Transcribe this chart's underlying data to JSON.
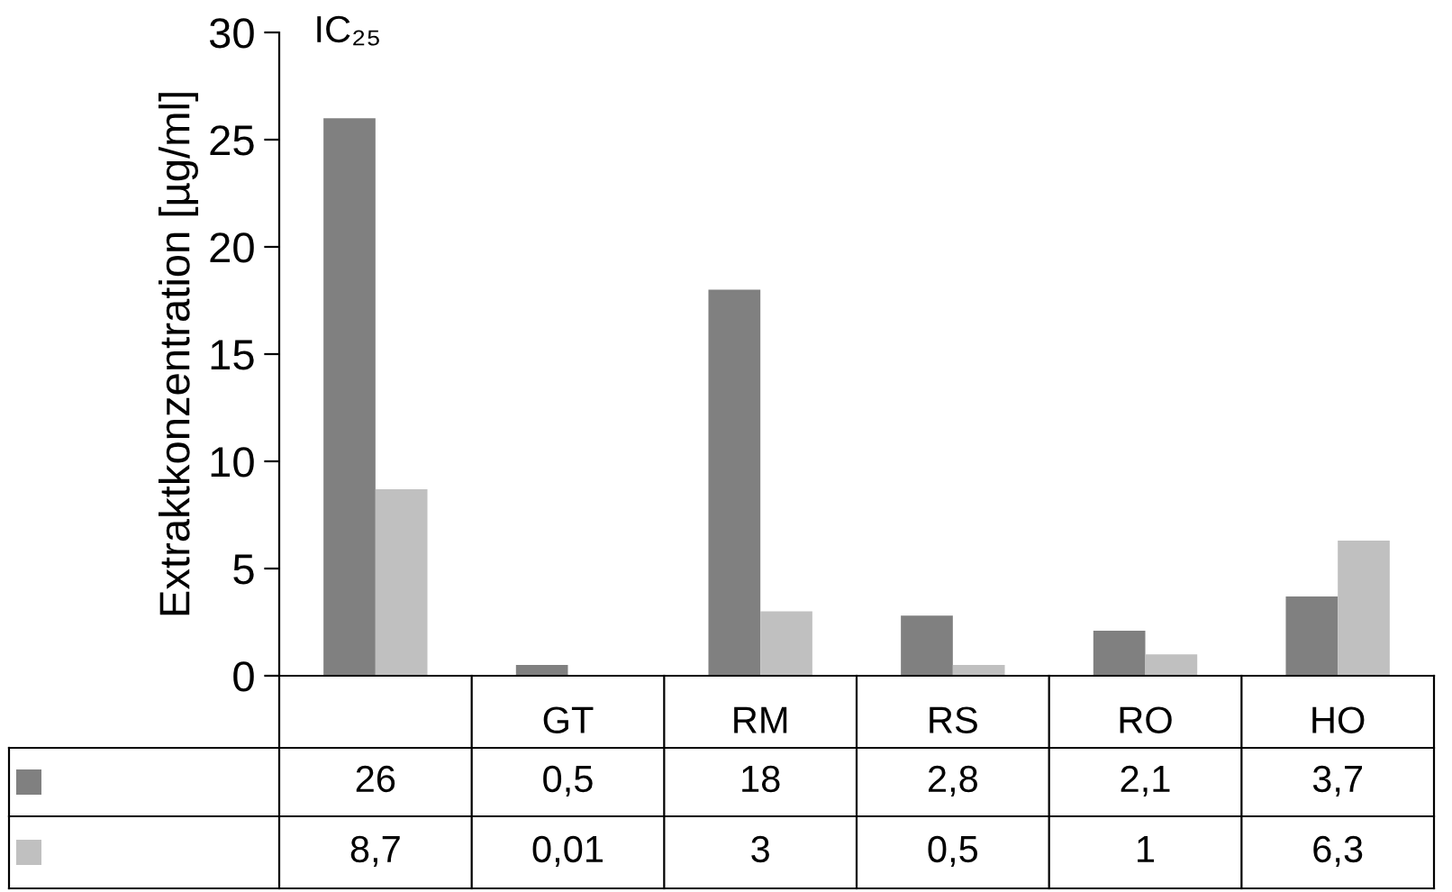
{
  "chart_data": {
    "type": "bar",
    "title": "IC₂₅",
    "ylabel": "Extraktkonzentration [µg/ml]",
    "categories": [
      null,
      "GT",
      "RM",
      "RS",
      "RO",
      "HO"
    ],
    "series": [
      {
        "color": "#808080",
        "values": [
          26,
          0.5,
          18,
          2.8,
          2.1,
          3.7
        ],
        "value_labels": [
          "26",
          "0,5",
          "18",
          "2,8",
          "2,1",
          "3,7"
        ]
      },
      {
        "color": "#c0c0c0",
        "values": [
          8.7,
          0.01,
          3,
          0.5,
          1,
          6.3
        ],
        "value_labels": [
          "8,7",
          "0,01",
          "3",
          "0,5",
          "1",
          "6,3"
        ]
      }
    ],
    "ylim": [
      0,
      30
    ],
    "yticks": [
      0,
      5,
      10,
      15,
      20,
      25,
      30
    ],
    "grid": false,
    "legend": false
  }
}
